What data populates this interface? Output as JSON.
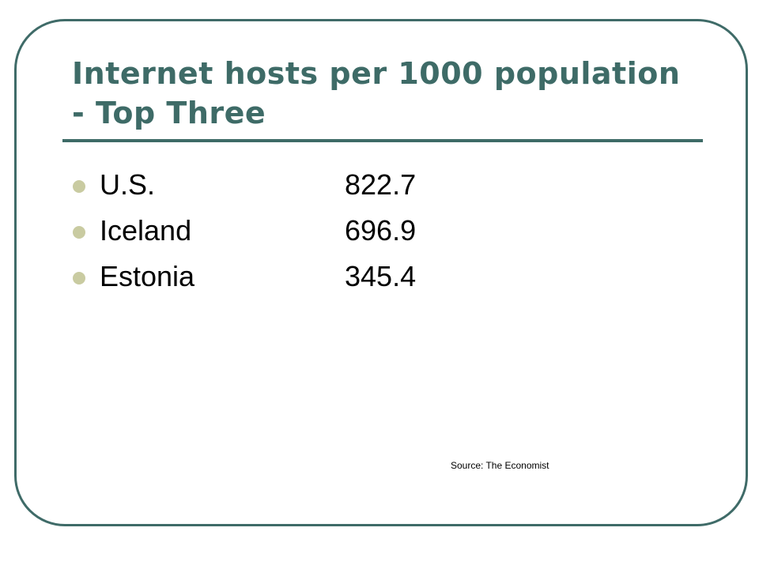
{
  "slide": {
    "title": "Internet hosts per 1000 population - Top Three",
    "bullets": [
      {
        "country": "U.S.",
        "value": "822.7"
      },
      {
        "country": "Iceland",
        "value": "696.9"
      },
      {
        "country": "Estonia",
        "value": "345.4"
      }
    ],
    "source": "Source: The Economist"
  },
  "colors": {
    "title": "#3e6b67",
    "frame": "#3f6b68",
    "bullet": "#c9cba1"
  }
}
